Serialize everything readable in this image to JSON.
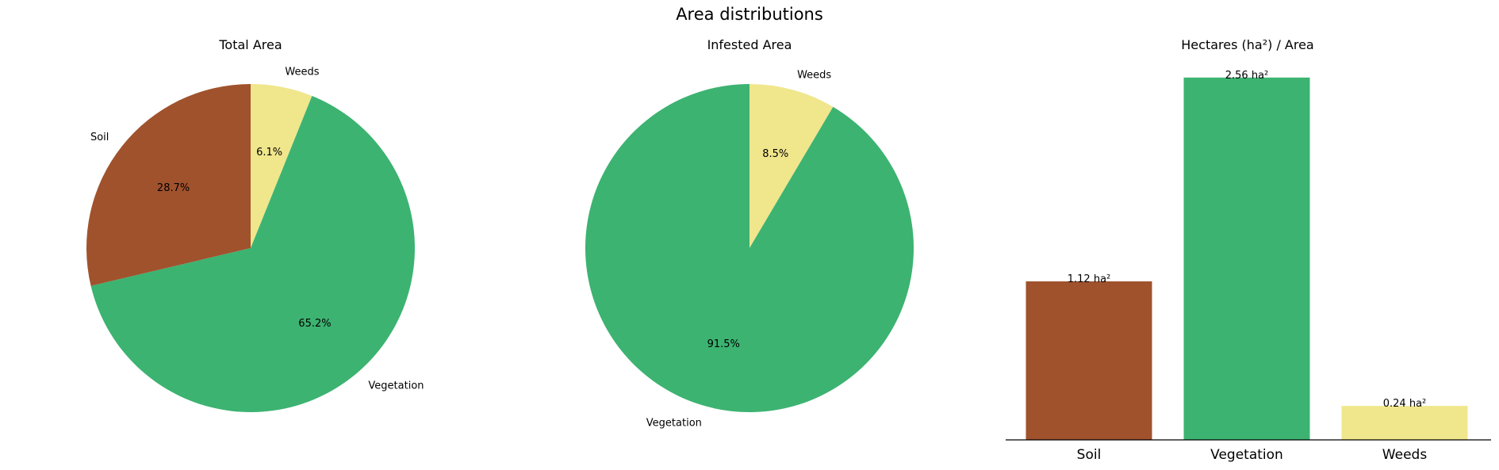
{
  "title": "Area distributions",
  "chart_data": [
    {
      "type": "pie",
      "title": "Total Area",
      "slices": [
        {
          "label": "Weeds",
          "value": 6.1,
          "pct_label": "6.1%",
          "color": "#f0e68c"
        },
        {
          "label": "Vegetation",
          "value": 65.2,
          "pct_label": "65.2%",
          "color": "#3cb371"
        },
        {
          "label": "Soil",
          "value": 28.7,
          "pct_label": "28.7%",
          "color": "#a0522d"
        }
      ],
      "start_angle": 90,
      "direction": "clockwise"
    },
    {
      "type": "pie",
      "title": "Infested Area",
      "slices": [
        {
          "label": "Weeds",
          "value": 8.5,
          "pct_label": "8.5%",
          "color": "#f0e68c"
        },
        {
          "label": "Vegetation",
          "value": 91.5,
          "pct_label": "91.5%",
          "color": "#3cb371"
        }
      ],
      "start_angle": 90,
      "direction": "clockwise"
    },
    {
      "type": "bar",
      "title": "Hectares (ha²) / Area",
      "categories": [
        "Soil",
        "Vegetation",
        "Weeds"
      ],
      "values": [
        1.12,
        2.56,
        0.24
      ],
      "value_labels": [
        "1.12 ha²",
        "2.56 ha²",
        "0.24 ha²"
      ],
      "colors": [
        "#a0522d",
        "#3cb371",
        "#f0e68c"
      ],
      "ylim": [
        0,
        2.688
      ],
      "y_axis_visible": false
    }
  ]
}
